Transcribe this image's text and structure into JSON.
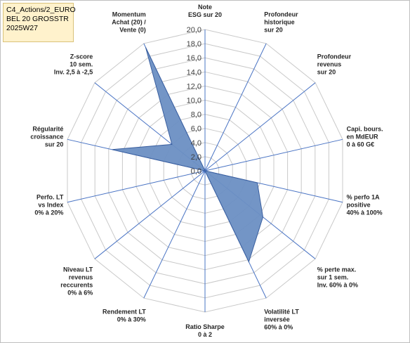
{
  "title_box": {
    "line1": "C4_Actions/2_EURO",
    "line2": "BEL 20 GROSSTR",
    "line3": "2025W27"
  },
  "chart_data": {
    "type": "radar",
    "rlim": [
      0,
      20
    ],
    "grid": true,
    "tick_labels": [
      "0,0",
      "2,0",
      "4,0",
      "6,0",
      "8,0",
      "10,0",
      "12,0",
      "14,0",
      "16,0",
      "18,0",
      "20,0"
    ],
    "axes": [
      {
        "label": [
          "Note",
          "ESG sur 20"
        ],
        "value": 0
      },
      {
        "label": [
          "Profondeur",
          "historique",
          "sur 20"
        ],
        "value": 0
      },
      {
        "label": [
          "Profondeur",
          "revenus",
          "sur 20"
        ],
        "value": 0
      },
      {
        "label": [
          "Capi. bours.",
          "en MdEUR",
          "0 à 60 G€"
        ],
        "value": 0
      },
      {
        "label": [
          "% perfo 1A",
          "positive",
          "40% à 100%"
        ],
        "value": 7.6
      },
      {
        "label": [
          "% perte max.",
          "sur 1 sem.",
          "Inv. 60% à 0%"
        ],
        "value": 10.5
      },
      {
        "label": [
          "Volatilité LT",
          "inversée",
          "60% à 0%"
        ],
        "value": 14.3
      },
      {
        "label": [
          "Ratio Sharpe",
          "0 à 2"
        ],
        "value": 0
      },
      {
        "label": [
          "Rendement LT",
          "0% à 30%"
        ],
        "value": 0
      },
      {
        "label": [
          "Niveau LT",
          "revenus",
          "reccurents",
          "0% à 6%"
        ],
        "value": 0
      },
      {
        "label": [
          "Perfo. LT",
          "vs Index",
          "0% à 20%"
        ],
        "value": 0
      },
      {
        "label": [
          "Régularité",
          "croissance",
          "sur 20"
        ],
        "value": 13.5
      },
      {
        "label": [
          "Z-score",
          "10 sem.",
          "Inv. 2,5 à -2,5"
        ],
        "value": 6.0
      },
      {
        "label": [
          "Momentum",
          "Achat (20) /",
          "Vente (0)"
        ],
        "value": 19.4
      }
    ],
    "colors": {
      "fill": "#6b8fc3",
      "stroke": "#3a5f9f",
      "spoke": "#4a74c4",
      "grid": "#c9c9c9"
    }
  }
}
